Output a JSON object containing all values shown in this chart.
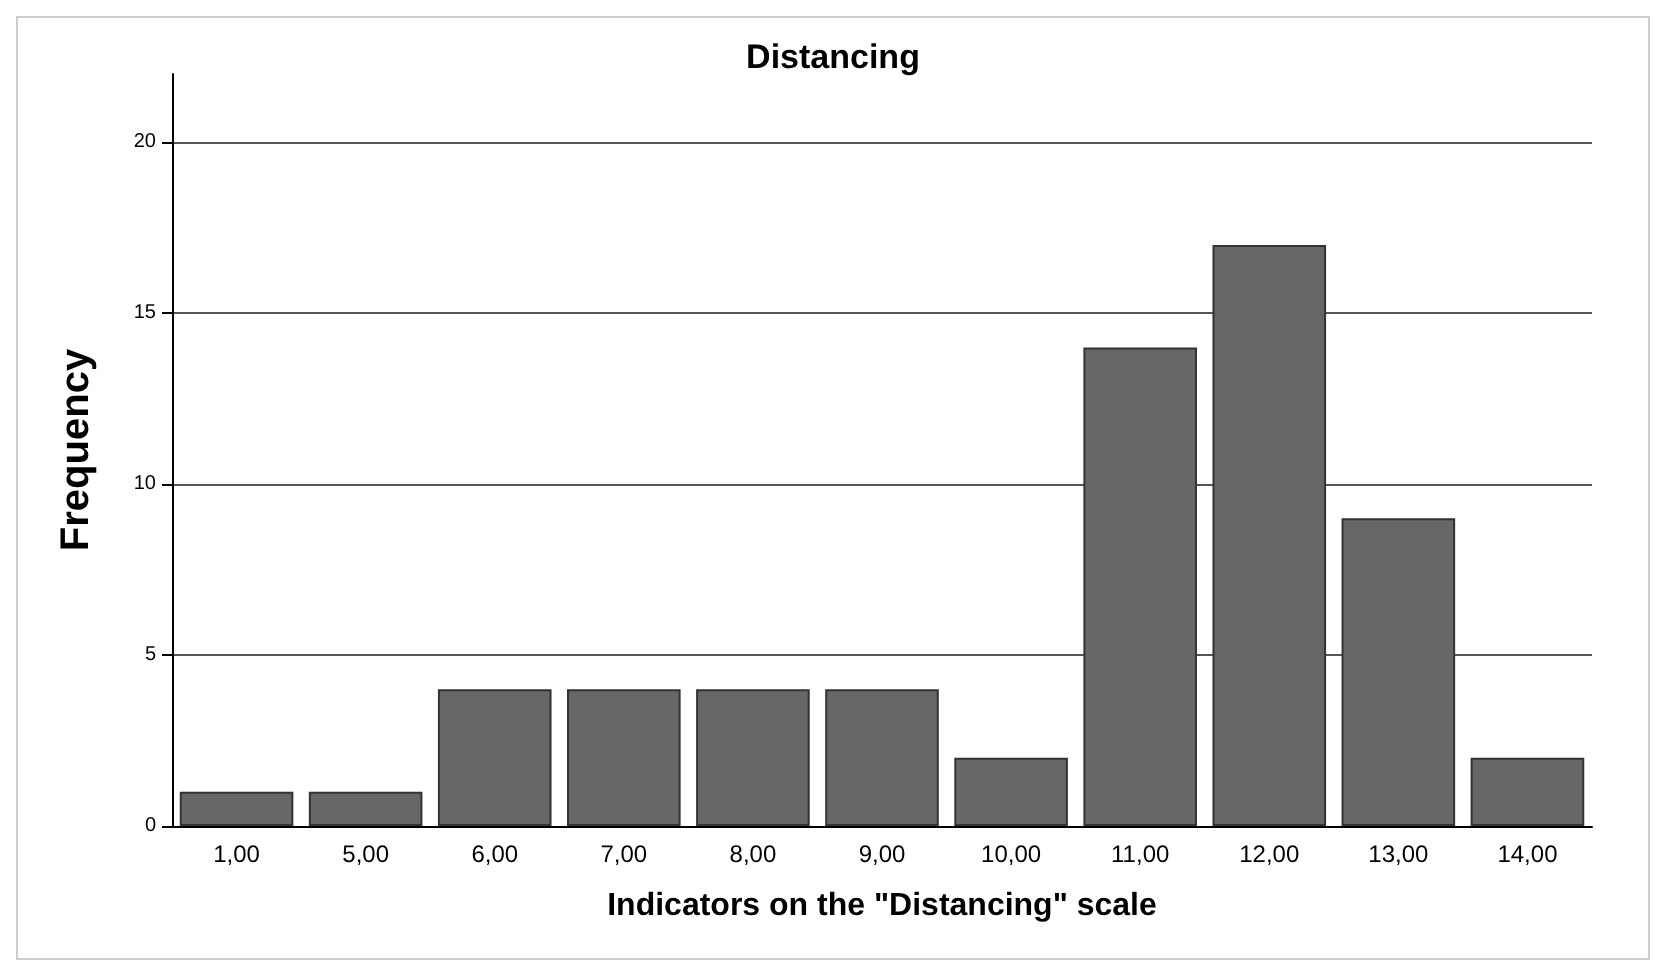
{
  "chart_data": {
    "type": "bar",
    "title": "Distancing",
    "xlabel": "Indicators on the \"Distancing\" scale",
    "ylabel": "Frequency",
    "categories": [
      "1,00",
      "5,00",
      "6,00",
      "7,00",
      "8,00",
      "9,00",
      "10,00",
      "11,00",
      "12,00",
      "13,00",
      "14,00"
    ],
    "values": [
      1,
      1,
      4,
      4,
      4,
      4,
      2,
      14,
      17,
      9,
      2
    ],
    "color": "#676767",
    "ylim": [
      0,
      22
    ],
    "yticks": [
      0,
      5,
      10,
      15,
      20
    ],
    "grid": "y"
  }
}
